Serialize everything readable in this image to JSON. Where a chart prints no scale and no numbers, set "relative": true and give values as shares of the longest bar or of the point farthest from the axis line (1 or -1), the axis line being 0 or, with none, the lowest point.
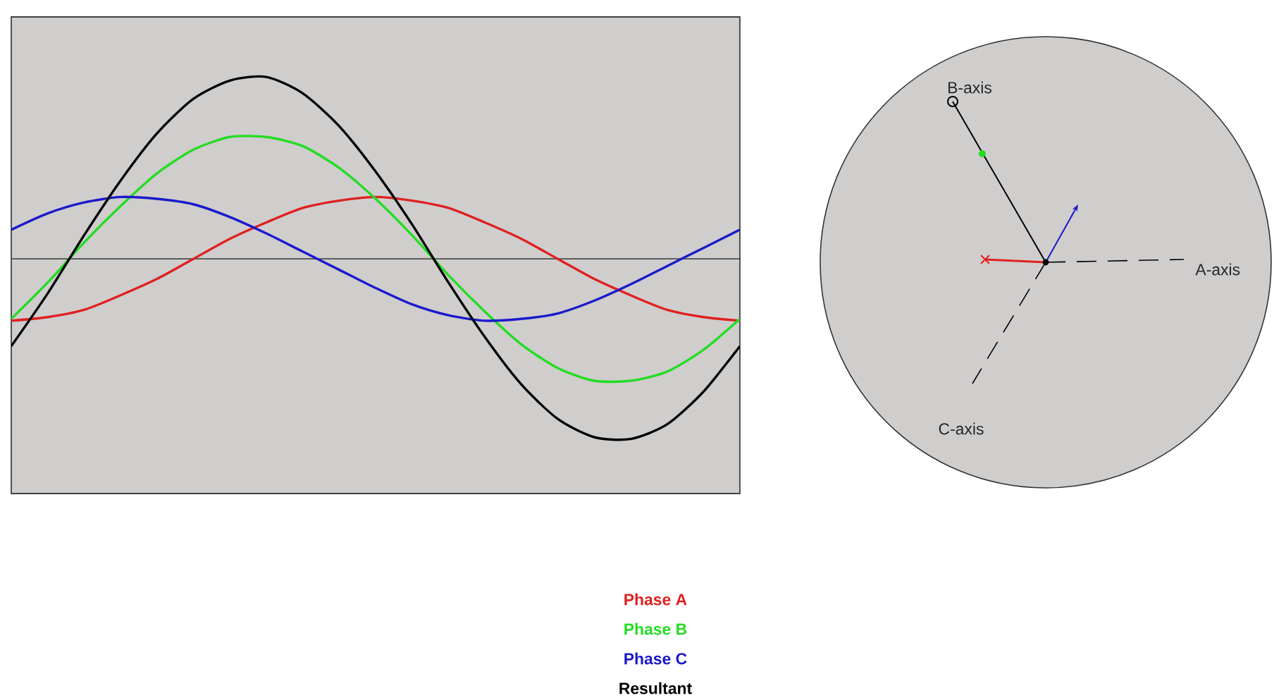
{
  "chart_data": [
    {
      "type": "line",
      "relative": true,
      "legend": "bottom",
      "categories": [
        null,
        null,
        null,
        null,
        null,
        null,
        null,
        null,
        null,
        null,
        null,
        null,
        null,
        null,
        null,
        null,
        null,
        null,
        null,
        null,
        null
      ],
      "series": [
        {
          "name": "Phase A",
          "color": "#e02020",
          "values": [
            -0.34,
            -0.32,
            -0.28,
            -0.2,
            -0.11,
            0,
            0.11,
            0.2,
            0.28,
            0.32,
            0.34,
            0.32,
            0.28,
            0.2,
            0.11,
            0,
            -0.11,
            -0.2,
            -0.28,
            -0.32,
            -0.34
          ]
        },
        {
          "name": "Phase B",
          "color": "#22dd22",
          "values": [
            -0.33,
            -0.13,
            0.09,
            0.29,
            0.47,
            0.6,
            0.67,
            0.67,
            0.62,
            0.5,
            0.33,
            0.13,
            -0.09,
            -0.29,
            -0.47,
            -0.6,
            -0.67,
            -0.67,
            -0.62,
            -0.5,
            -0.33
          ]
        },
        {
          "name": "Phase C",
          "color": "#1a1acc",
          "values": [
            0.16,
            0.25,
            0.31,
            0.34,
            0.33,
            0.3,
            0.23,
            0.14,
            0.04,
            -0.06,
            -0.16,
            -0.25,
            -0.31,
            -0.34,
            -0.33,
            -0.3,
            -0.23,
            -0.14,
            -0.04,
            0.06,
            0.16
          ]
        },
        {
          "name": "Resultant",
          "color": "#000000",
          "values": [
            -0.48,
            -0.19,
            0.13,
            0.43,
            0.69,
            0.88,
            0.98,
            1,
            0.91,
            0.73,
            0.48,
            0.19,
            -0.13,
            -0.43,
            -0.69,
            -0.88,
            -0.98,
            -0.99,
            -0.91,
            -0.73,
            -0.48
          ]
        }
      ]
    },
    {
      "type": "other",
      "annotations": [
        "B-axis",
        "A-axis",
        "C-axis"
      ]
    }
  ]
}
